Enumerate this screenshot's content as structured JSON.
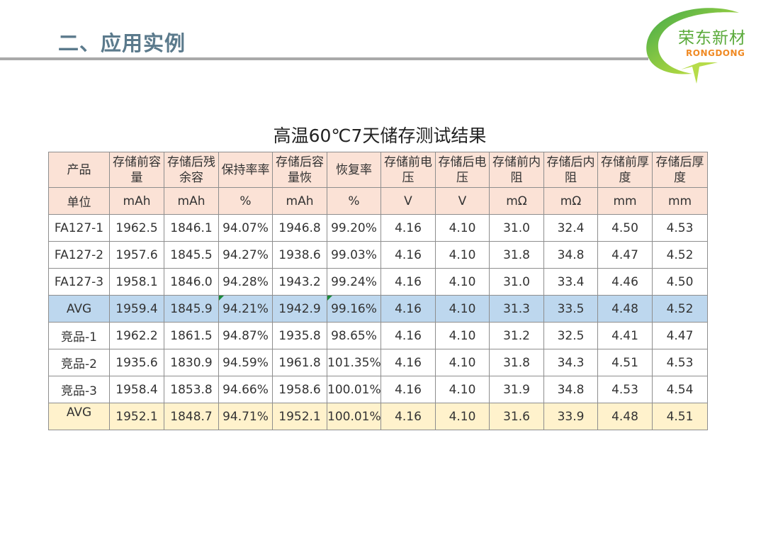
{
  "header": {
    "title": "二、应用实例"
  },
  "logo": {
    "name_cn": "荣东新材",
    "name_en": "RONGDONG",
    "colors": {
      "green": "#5aaa3a",
      "orange": "#f08a24"
    }
  },
  "table": {
    "title": "高温60℃7天储存测试结果",
    "header_row": [
      "产品",
      "存储前容量",
      "存储后残余容",
      "保持率率",
      "存储后容量恢",
      "恢复率",
      "存储前电压",
      "存储后电压",
      "存储前内阻",
      "存储后内阻",
      "存储前厚度",
      "存储后厚度"
    ],
    "unit_row": [
      "单位",
      "mAh",
      "mAh",
      "%",
      "mAh",
      "%",
      "V",
      "V",
      "mΩ",
      "mΩ",
      "mm",
      "mm"
    ],
    "rows": [
      [
        "FA127-1",
        "1962.5",
        "1846.1",
        "94.07%",
        "1946.8",
        "99.20%",
        "4.16",
        "4.10",
        "31.0",
        "32.4",
        "4.50",
        "4.53"
      ],
      [
        "FA127-2",
        "1957.6",
        "1845.5",
        "94.27%",
        "1938.6",
        "99.03%",
        "4.16",
        "4.10",
        "31.8",
        "34.8",
        "4.47",
        "4.52"
      ],
      [
        "FA127-3",
        "1958.1",
        "1846.0",
        "94.28%",
        "1943.2",
        "99.24%",
        "4.16",
        "4.10",
        "31.0",
        "33.4",
        "4.46",
        "4.50"
      ],
      [
        "AVG",
        "1959.4",
        "1845.9",
        "94.21%",
        "1942.9",
        "99.16%",
        "4.16",
        "4.10",
        "31.3",
        "33.5",
        "4.48",
        "4.52"
      ],
      [
        "竞品-1",
        "1962.2",
        "1861.5",
        "94.87%",
        "1935.8",
        "98.65%",
        "4.16",
        "4.10",
        "31.2",
        "32.5",
        "4.41",
        "4.47"
      ],
      [
        "竞品-2",
        "1935.6",
        "1830.9",
        "94.59%",
        "1961.8",
        "101.35%",
        "4.16",
        "4.10",
        "31.8",
        "34.3",
        "4.51",
        "4.53"
      ],
      [
        "竞品-3",
        "1958.4",
        "1853.8",
        "94.66%",
        "1958.6",
        "100.01%",
        "4.16",
        "4.10",
        "31.9",
        "34.8",
        "4.53",
        "4.54"
      ],
      [
        "AVG",
        "1952.1",
        "1848.7",
        "94.71%",
        "1952.1",
        "100.01%",
        "4.16",
        "4.10",
        "31.6",
        "33.9",
        "4.48",
        "4.51"
      ]
    ],
    "colors": {
      "header_fill": "#fbe2d6",
      "avg_ours_fill": "#bdd7ee",
      "avg_competitor_fill": "#fff2cc"
    }
  }
}
